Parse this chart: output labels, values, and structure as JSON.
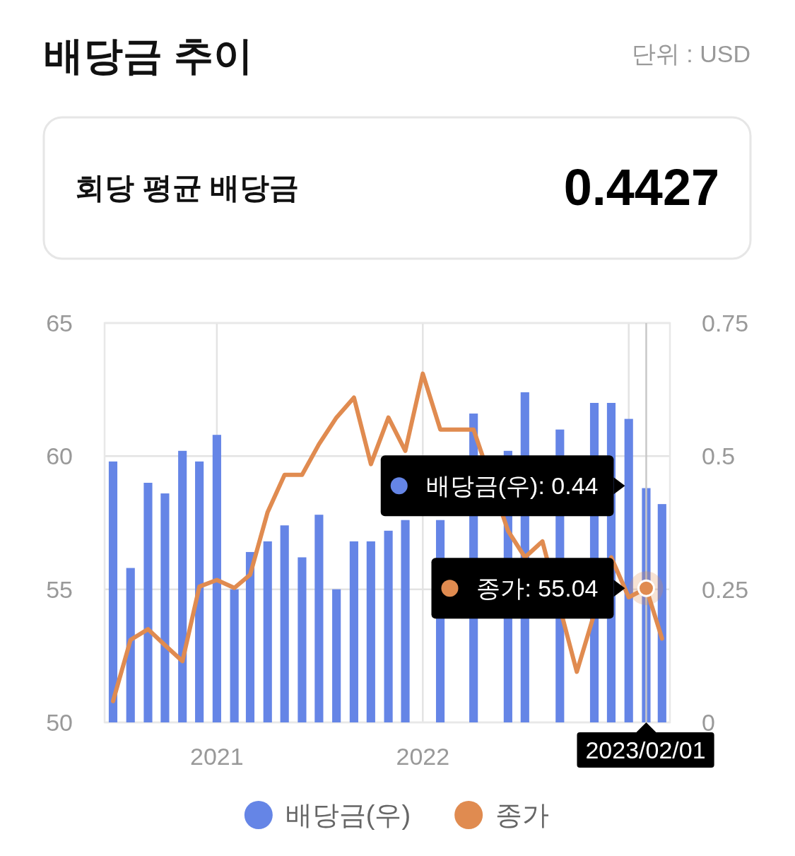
{
  "chart_data": {
    "type": "bar",
    "title": "배당금 추이",
    "annotations": [
      "단위 : USD",
      "회당 평균 배당금",
      "0.4427",
      {
        "text": "배당금(우): 0.44",
        "x": "2023-02-01"
      },
      {
        "text": "종가: 55.04",
        "x": "2023-02-01",
        "y": 55.04
      },
      {
        "text": "2023/02/01",
        "x": "2023-02-01"
      }
    ],
    "x": [
      "2020-07-01",
      "2020-08-01",
      "2020-09-01",
      "2020-10-01",
      "2020-11-01",
      "2020-12-01",
      "2021-01-01",
      "2021-02-01",
      "2021-03-01",
      "2021-04-01",
      "2021-05-01",
      "2021-06-01",
      "2021-07-01",
      "2021-08-01",
      "2021-09-01",
      "2021-10-01",
      "2021-11-01",
      "2021-12-01",
      "2022-01-01",
      "2022-02-01",
      "2022-03-01",
      "2022-04-01",
      "2022-05-01",
      "2022-06-01",
      "2022-07-01",
      "2022-08-01",
      "2022-09-01",
      "2022-10-01",
      "2022-11-01",
      "2022-12-01",
      "2023-01-01",
      "2023-02-01",
      "2023-03-01"
    ],
    "series": [
      {
        "name": "배당금(우)",
        "axis": "y2",
        "color": "#6585e6",
        "values": [
          0.49,
          0.29,
          0.45,
          0.43,
          0.51,
          0.49,
          0.54,
          0.25,
          0.32,
          0.34,
          0.37,
          0.31,
          0.39,
          0.25,
          0.34,
          0.34,
          0.36,
          0.38,
          null,
          0.38,
          null,
          0.58,
          null,
          0.51,
          0.62,
          null,
          0.55,
          null,
          0.6,
          0.6,
          0.57,
          0.44,
          0.41
        ]
      },
      {
        "name": "종가",
        "type": "line",
        "color": "#e08b50",
        "values": [
          50.8,
          53.1,
          53.5,
          52.9,
          52.3,
          55.1,
          55.35,
          55.05,
          55.55,
          57.9,
          59.3,
          59.3,
          60.45,
          61.45,
          62.2,
          59.7,
          61.45,
          60.2,
          63.1,
          61.0,
          null,
          61.0,
          null,
          57.2,
          56.2,
          56.8,
          null,
          51.9,
          null,
          56.2,
          54.7,
          55.04,
          53.15
        ]
      }
    ],
    "xlim": [
      "2020-06-16",
      "2023-03-15"
    ],
    "xticks": [
      {
        "value": "2021-01-01",
        "label": "2021"
      },
      {
        "value": "2022-01-01",
        "label": "2022"
      },
      {
        "value": "2023-01-01",
        "label": null
      }
    ],
    "ylim": [
      50,
      65
    ],
    "yticks": [
      50,
      55,
      60,
      65
    ],
    "y2lim": [
      0,
      0.75
    ],
    "y2ticks": [
      0,
      0.25,
      0.5,
      0.75
    ],
    "grid": true,
    "legend": "bottom",
    "marker": "none"
  }
}
